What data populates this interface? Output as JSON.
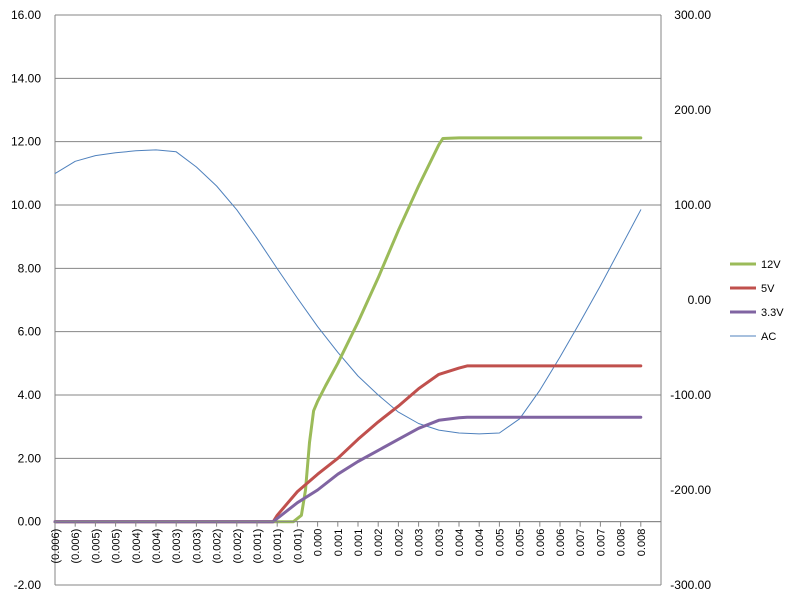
{
  "chart_data": {
    "type": "line",
    "title": "",
    "xlabel": "",
    "ylabel": "",
    "y_left": {
      "ylim": [
        -2,
        16
      ],
      "ticks": [
        -2,
        0,
        2,
        4,
        6,
        8,
        10,
        12,
        14,
        16
      ],
      "tick_labels": [
        "-2.00",
        "0.00",
        "2.00",
        "4.00",
        "6.00",
        "8.00",
        "10.00",
        "12.00",
        "14.00",
        "16.00"
      ]
    },
    "y_right": {
      "ylim": [
        -300,
        300
      ],
      "ticks": [
        -300,
        -200,
        -100,
        0,
        100,
        200,
        300
      ],
      "tick_labels": [
        "-300.00",
        "-200.00",
        "-100.00",
        "0.00",
        "100.00",
        "200.00",
        "300.00"
      ]
    },
    "x": {
      "xlim": [
        -0.0065,
        0.0085
      ],
      "tick_values": [
        -0.0065,
        -0.006,
        -0.0055,
        -0.005,
        -0.0045,
        -0.004,
        -0.0035,
        -0.003,
        -0.0025,
        -0.002,
        -0.0015,
        -0.001,
        -0.0005,
        0.0,
        0.0005,
        0.001,
        0.0015,
        0.002,
        0.0025,
        0.003,
        0.0035,
        0.004,
        0.0045,
        0.005,
        0.0055,
        0.006,
        0.0065,
        0.007,
        0.0075,
        0.008
      ],
      "tick_labels": [
        "(0.006)",
        "(0.006)",
        "(0.005)",
        "(0.005)",
        "(0.004)",
        "(0.004)",
        "(0.003)",
        "(0.003)",
        "(0.002)",
        "(0.002)",
        "(0.001)",
        "(0.001)",
        "(0.001)",
        "0.000",
        "0.001",
        "0.001",
        "0.002",
        "0.002",
        "0.003",
        "0.003",
        "0.004",
        "0.004",
        "0.005",
        "0.005",
        "0.006",
        "0.006",
        "0.007",
        "0.007",
        "0.008",
        "0.008"
      ]
    },
    "grid": "horizontal",
    "legend_position": "right",
    "series": [
      {
        "name": "12V",
        "axis": "left",
        "color": "#9bbb59",
        "x": [
          -0.0065,
          -0.0006,
          -0.0004,
          -0.0003,
          -0.0002,
          -0.0001,
          0.0,
          0.0002,
          0.0005,
          0.001,
          0.0015,
          0.002,
          0.0025,
          0.003,
          0.0031,
          0.0035,
          0.008
        ],
        "y": [
          0,
          0,
          0.2,
          1.0,
          2.5,
          3.5,
          3.8,
          4.3,
          5.0,
          6.3,
          7.7,
          9.2,
          10.6,
          11.9,
          12.1,
          12.12,
          12.12
        ]
      },
      {
        "name": "5V",
        "axis": "left",
        "color": "#c0504d",
        "x": [
          -0.0065,
          -0.0011,
          -0.001,
          -0.0005,
          0.0,
          0.0005,
          0.001,
          0.0015,
          0.002,
          0.0025,
          0.003,
          0.0035,
          0.0037,
          0.008
        ],
        "y": [
          0,
          0,
          0.2,
          0.95,
          1.5,
          2.0,
          2.6,
          3.15,
          3.65,
          4.2,
          4.65,
          4.85,
          4.92,
          4.92
        ]
      },
      {
        "name": "3.3V",
        "axis": "left",
        "color": "#8064a2",
        "x": [
          -0.0065,
          -0.0011,
          -0.001,
          -0.0005,
          0.0,
          0.0005,
          0.001,
          0.0015,
          0.002,
          0.0025,
          0.003,
          0.0035,
          0.0037,
          0.008
        ],
        "y": [
          0,
          0,
          0.1,
          0.6,
          1.0,
          1.5,
          1.9,
          2.25,
          2.6,
          2.95,
          3.2,
          3.28,
          3.3,
          3.3
        ]
      },
      {
        "name": "AC",
        "axis": "right",
        "color": "#4f81bd",
        "x": [
          -0.0065,
          -0.006,
          -0.0055,
          -0.005,
          -0.0045,
          -0.004,
          -0.0035,
          -0.003,
          -0.0025,
          -0.002,
          -0.0015,
          -0.001,
          -0.0005,
          0.0,
          0.0005,
          0.001,
          0.0015,
          0.002,
          0.0025,
          0.003,
          0.0035,
          0.004,
          0.0045,
          0.005,
          0.0055,
          0.006,
          0.0065,
          0.007,
          0.0075,
          0.008
        ],
        "y": [
          133,
          146,
          152,
          155,
          157,
          158,
          156,
          140,
          120,
          95,
          65,
          33,
          2,
          -28,
          -55,
          -80,
          -100,
          -118,
          -130,
          -137,
          -140,
          -141,
          -140,
          -125,
          -95,
          -60,
          -23,
          15,
          55,
          95
        ]
      }
    ]
  }
}
